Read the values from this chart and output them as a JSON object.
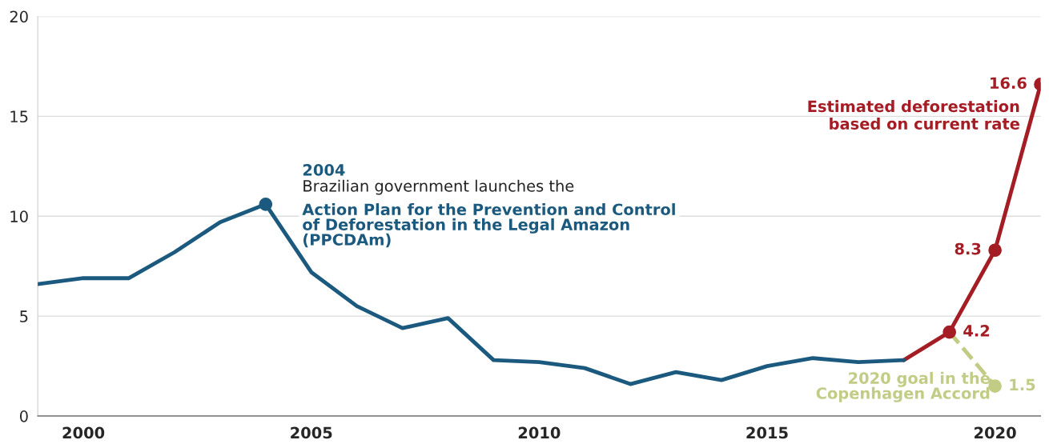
{
  "chart_data": {
    "type": "line",
    "xlim": [
      1999,
      2021
    ],
    "xticks": [
      2000,
      2005,
      2010,
      2015,
      2020
    ],
    "ylim": [
      0,
      20
    ],
    "yticks": [
      0,
      5,
      10,
      15,
      20
    ],
    "grid": "y",
    "legend": false,
    "series": [
      {
        "color": "#1b5a7e",
        "marker": "none",
        "line_style": "solid",
        "x": [
          1999,
          2000,
          2001,
          2002,
          2003,
          2004,
          2005,
          2006,
          2007,
          2008,
          2009,
          2010,
          2011,
          2012,
          2013,
          2014,
          2015,
          2016,
          2017,
          2018
        ],
        "values": [
          6.6,
          6.9,
          6.9,
          8.2,
          9.7,
          10.6,
          7.2,
          5.5,
          4.4,
          4.9,
          2.8,
          2.7,
          2.4,
          1.6,
          2.2,
          1.8,
          2.5,
          2.9,
          2.7,
          2.8
        ]
      },
      {
        "type": "scatter",
        "color": "#1b5a7e",
        "marker": "circle",
        "x": [
          2004
        ],
        "values": [
          10.6
        ]
      },
      {
        "name": "Estimated deforestation based on current rate",
        "color": "#a51d24",
        "marker": "circle",
        "line_style": "solid",
        "x": [
          2018,
          2019,
          2020,
          2021
        ],
        "values": [
          2.8,
          4.2,
          8.3,
          16.6
        ],
        "value_labels": [
          null,
          "4.2",
          "8.3",
          "16.6"
        ]
      },
      {
        "name": "2020 goal in the Copenhagen Accord",
        "color": "#c2cc84",
        "marker": "circle",
        "line_style": "dashed",
        "x": [
          2019,
          2020
        ],
        "values": [
          4.2,
          1.5
        ],
        "value_labels": [
          null,
          "1.5"
        ]
      }
    ],
    "annotations": [
      "2004",
      "Brazilian government launches the",
      "Action Plan for the Prevention and Control of Deforestation in the Legal Amazon (PPCDAm)"
    ]
  }
}
